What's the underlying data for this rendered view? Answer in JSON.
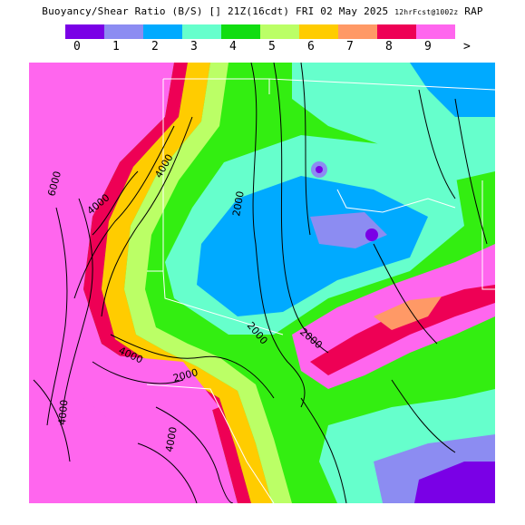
{
  "header": {
    "title_main": "Buoyancy/Shear Ratio (B/S)",
    "valid": "[] 21Z(16cdt) FRI 02 May 2025",
    "forecast": "12hrFcst@1002z",
    "model": "RAP"
  },
  "legend": {
    "colors": [
      "#7a00e6",
      "#8c8cf2",
      "#00aaff",
      "#66ffcc",
      "#11dd11",
      "#bbff66",
      "#ffcc00",
      "#ff9966",
      "#ee0055",
      "#ff66ee"
    ],
    "labels": [
      "0",
      "1",
      "2",
      "3",
      "4",
      "5",
      "6",
      "7",
      "8",
      "9"
    ],
    "overflow_label": ">"
  },
  "map": {
    "contour_labels": [
      "6000",
      "4000",
      "4000",
      "2000",
      "2000",
      "2000",
      "4000",
      "4000",
      "2000",
      "4000"
    ]
  }
}
